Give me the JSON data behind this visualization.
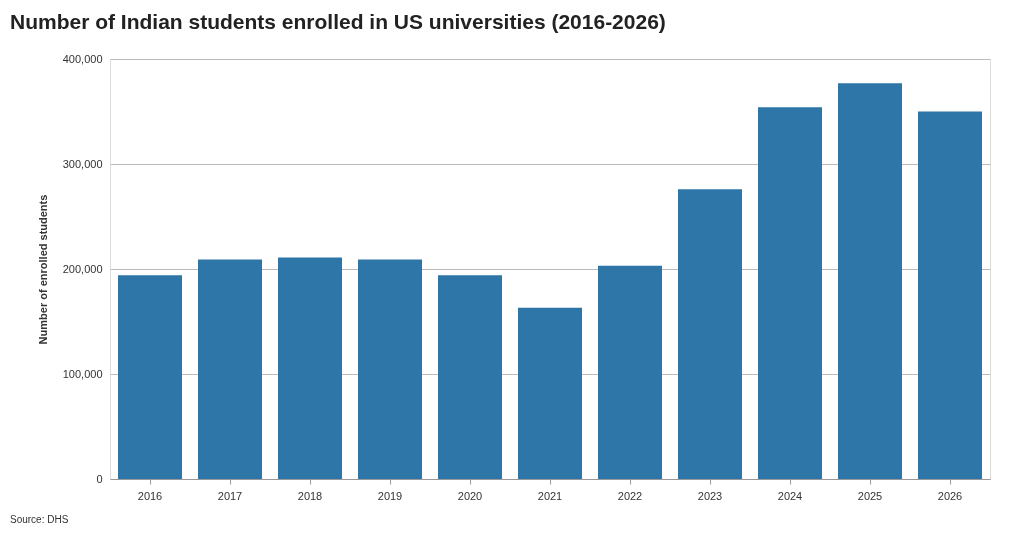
{
  "chart_data": {
    "type": "bar",
    "title": "Number of Indian students enrolled in US universities (2016-2026)",
    "ylabel": "Number of enrolled students",
    "categories": [
      "2016",
      "2017",
      "2018",
      "2019",
      "2020",
      "2021",
      "2022",
      "2023",
      "2024",
      "2025",
      "2026"
    ],
    "values": [
      194000,
      209000,
      211000,
      209000,
      194000,
      163000,
      203000,
      276000,
      354000,
      377000,
      350000
    ],
    "color": "#2e75a8",
    "ylim": [
      0,
      400000
    ],
    "yticks": [
      0,
      {
        "value": 100000,
        "label": "100,000"
      },
      {
        "value": 200000,
        "label": "200,000"
      },
      {
        "value": 300000,
        "label": "300,000"
      },
      {
        "value": 400000,
        "label": "400,000"
      }
    ],
    "grid": "y",
    "annotations": [
      "Source: DHS"
    ]
  }
}
